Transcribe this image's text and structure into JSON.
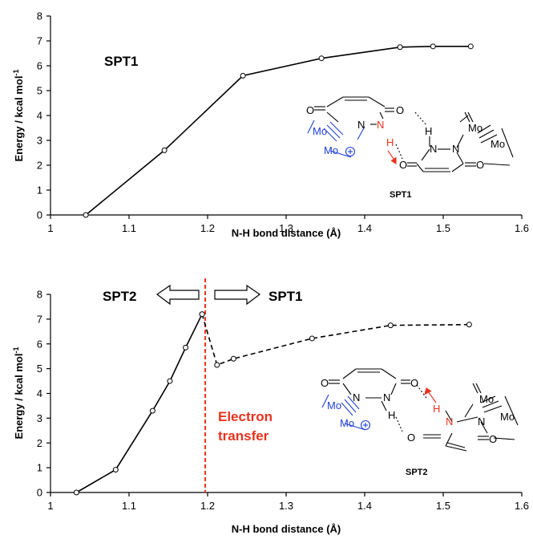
{
  "chart_data": [
    {
      "type": "line",
      "panel": "top",
      "x": [
        1.045,
        1.145,
        1.245,
        1.345,
        1.445,
        1.487,
        1.535
      ],
      "y": [
        0.0,
        2.6,
        5.6,
        6.3,
        6.75,
        6.78,
        6.78
      ],
      "line_style": "solid",
      "xlim": [
        1,
        1.6
      ],
      "ylim": [
        0,
        8
      ],
      "xticks": [
        "1",
        "1.1",
        "1.2",
        "1.3",
        "1.4",
        "1.5",
        "1.6"
      ],
      "yticks": [
        "0",
        "1",
        "2",
        "3",
        "4",
        "5",
        "6",
        "7",
        "8"
      ],
      "xlabel": "N-H bond distance (Å)",
      "ylabel_main": "Energy / kcal mol",
      "ylabel_sup": "-1",
      "label": "SPT1",
      "structure": {
        "caption": "SPT1",
        "atoms_black": [
          "O",
          "N",
          "O",
          "H",
          "H",
          "N",
          "N",
          "O",
          "O",
          "Mo",
          "Mo"
        ],
        "atoms_blue": [
          "Mo",
          "Mo"
        ],
        "atoms_red": [
          "N",
          "H"
        ],
        "charge": "+"
      }
    },
    {
      "type": "line",
      "panel": "bottom",
      "series": [
        {
          "x": [
            1.033,
            1.083,
            1.13,
            1.152,
            1.172,
            1.193
          ],
          "y": [
            0.0,
            0.92,
            3.3,
            4.5,
            5.85,
            7.2
          ],
          "line_style": "solid"
        },
        {
          "x": [
            1.193,
            1.212,
            1.233,
            1.333,
            1.433,
            1.533
          ],
          "y": [
            7.2,
            5.15,
            5.4,
            6.22,
            6.75,
            6.78
          ],
          "line_style": "dashed"
        }
      ],
      "xlim": [
        1,
        1.6
      ],
      "ylim": [
        0,
        8
      ],
      "xticks": [
        "1",
        "1.1",
        "1.2",
        "1.3",
        "1.4",
        "1.5",
        "1.6"
      ],
      "yticks": [
        "0",
        "1",
        "2",
        "3",
        "4",
        "5",
        "6",
        "7",
        "8"
      ],
      "xlabel": "N-H bond distance (Å)",
      "ylabel_main": "Energy / kcal mol",
      "ylabel_sup": "-1",
      "divider_x": 1.197,
      "label_left": "SPT2",
      "label_right": "SPT1",
      "annotation_line1": "Electron",
      "annotation_line2": "transfer",
      "divider_color": "#e8321e",
      "structure": {
        "caption": "SPT2",
        "atoms_black": [
          "O",
          "N",
          "N",
          "O",
          "H",
          "N",
          "O",
          "O",
          "O",
          "Mo",
          "Mo"
        ],
        "atoms_blue": [
          "Mo",
          "Mo"
        ],
        "atoms_red": [
          "N",
          "H"
        ],
        "charge": "+"
      }
    }
  ]
}
